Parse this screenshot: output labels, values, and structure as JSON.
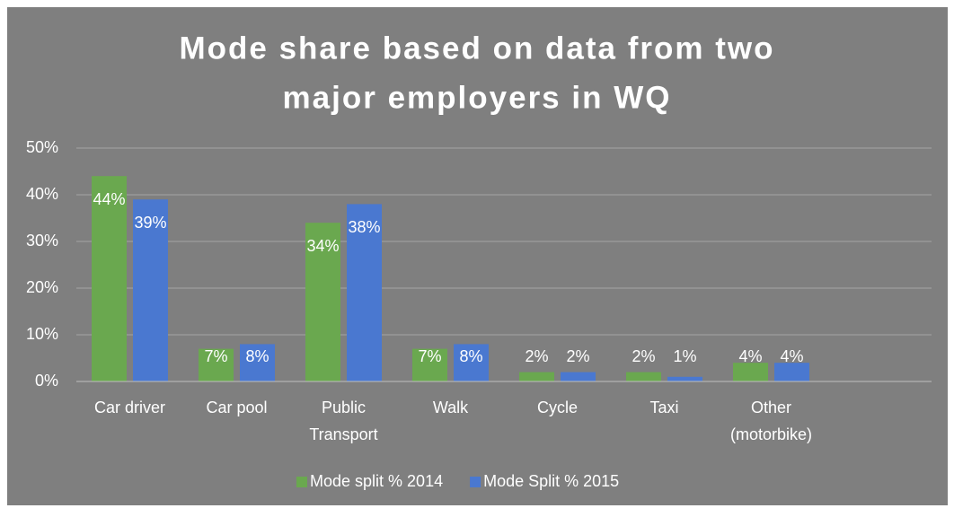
{
  "chart_data": {
    "type": "bar",
    "title": [
      "Mode share based on data from two",
      "major employers in WQ"
    ],
    "categories": [
      "Car driver",
      "Car pool",
      "Public Transport",
      "Walk",
      "Cycle",
      "Taxi",
      "Other (motorbike)",
      null
    ],
    "series": [
      {
        "name": "Mode split % 2014",
        "color": "#6aa84f",
        "values": [
          44,
          7,
          34,
          7,
          2,
          2,
          4,
          null
        ],
        "value_labels": [
          "44%",
          "7%",
          "34%",
          "7%",
          "2%",
          "2%",
          "4%",
          null
        ]
      },
      {
        "name": "Mode Split % 2015",
        "color": "#4a78d0",
        "values": [
          39,
          8,
          38,
          8,
          2,
          1,
          4,
          null
        ],
        "value_labels": [
          "39%",
          "8%",
          "38%",
          "8%",
          "2%",
          "1%",
          "4%",
          null
        ]
      }
    ],
    "ylim": [
      0,
      50
    ],
    "yticks": [
      {
        "value": 0,
        "label": "0%"
      },
      {
        "value": 10,
        "label": "10%"
      },
      {
        "value": 20,
        "label": "20%"
      },
      {
        "value": 30,
        "label": "30%"
      },
      {
        "value": 40,
        "label": "40%"
      },
      {
        "value": 50,
        "label": "50%"
      }
    ],
    "grid": true,
    "legend": "bottom"
  }
}
